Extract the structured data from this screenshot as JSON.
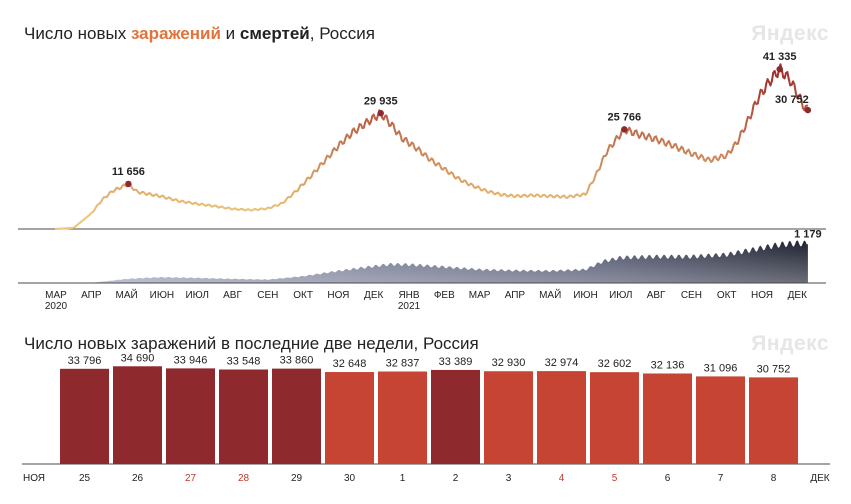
{
  "chart1": {
    "title_prefix": "Число новых ",
    "title_infections": "заражений",
    "title_mid": " и ",
    "title_deaths": "смертей",
    "title_suffix": ", Россия",
    "watermark": "Яндекс"
  },
  "chart2": {
    "title": "Число новых заражений в последние две недели, Россия",
    "watermark": "Яндекс"
  },
  "chart_data": [
    {
      "type": "line",
      "title": "Число новых заражений и смертей, Россия",
      "x_axis_labels": [
        "МАР",
        "АПР",
        "МАЙ",
        "ИЮН",
        "ИЮЛ",
        "АВГ",
        "СЕН",
        "ОКТ",
        "НОЯ",
        "ДЕК",
        "ЯНВ",
        "ФЕВ",
        "МАР",
        "АПР",
        "МАЙ",
        "ИЮН",
        "ИЮЛ",
        "АВГ",
        "СЕН",
        "ОКТ",
        "НОЯ",
        "ДЕК"
      ],
      "year_labels": [
        {
          "label": "2020",
          "month_index": 0
        },
        {
          "label": "2021",
          "month_index": 10
        }
      ],
      "series": [
        {
          "name": "заражений",
          "color_low": "#ecc67a",
          "color_high": "#a2302c",
          "points": [
            [
              0,
              0
            ],
            [
              0.5,
              300
            ],
            [
              1,
              4000
            ],
            [
              1.3,
              7500
            ],
            [
              1.6,
              9800
            ],
            [
              2.05,
              11656
            ],
            [
              2.3,
              9600
            ],
            [
              2.7,
              8900
            ],
            [
              3.0,
              8400
            ],
            [
              3.5,
              7200
            ],
            [
              4.0,
              6500
            ],
            [
              4.5,
              5900
            ],
            [
              5.0,
              5200
            ],
            [
              5.5,
              4900
            ],
            [
              6.0,
              5300
            ],
            [
              6.4,
              6600
            ],
            [
              6.8,
              9800
            ],
            [
              7.2,
              13500
            ],
            [
              7.6,
              17500
            ],
            [
              8.0,
              21500
            ],
            [
              8.4,
              25000
            ],
            [
              8.8,
              27500
            ],
            [
              9.2,
              29935
            ],
            [
              9.5,
              27000
            ],
            [
              9.8,
              23500
            ],
            [
              10.2,
              21000
            ],
            [
              10.6,
              18000
            ],
            [
              11.0,
              15500
            ],
            [
              11.4,
              13000
            ],
            [
              11.8,
              11200
            ],
            [
              12.2,
              9800
            ],
            [
              12.6,
              8900
            ],
            [
              13.0,
              8500
            ],
            [
              13.5,
              8700
            ],
            [
              14.0,
              8500
            ],
            [
              14.5,
              8300
            ],
            [
              15.0,
              9000
            ],
            [
              15.3,
              14000
            ],
            [
              15.6,
              20000
            ],
            [
              15.9,
              23500
            ],
            [
              16.1,
              25766
            ],
            [
              16.5,
              24500
            ],
            [
              17.0,
              23200
            ],
            [
              17.5,
              21500
            ],
            [
              18.0,
              19500
            ],
            [
              18.5,
              17800
            ],
            [
              19.0,
              19000
            ],
            [
              19.3,
              22500
            ],
            [
              19.6,
              28000
            ],
            [
              19.9,
              34000
            ],
            [
              20.2,
              38000
            ],
            [
              20.5,
              41335
            ],
            [
              20.8,
              38500
            ],
            [
              21.0,
              35000
            ],
            [
              21.2,
              31500
            ],
            [
              21.3,
              30752
            ]
          ],
          "labels": [
            {
              "value": "11 656",
              "at": 2.05,
              "y": 11656
            },
            {
              "value": "29 935",
              "at": 9.2,
              "y": 29935
            },
            {
              "value": "25 766",
              "at": 16.1,
              "y": 25766
            },
            {
              "value": "41 335",
              "at": 20.5,
              "y": 41335
            },
            {
              "value": "30 752",
              "at": 21.3,
              "y": 30752
            }
          ],
          "ylim": [
            0,
            45000
          ]
        },
        {
          "name": "смертей",
          "color_low": "#9fa5c0",
          "color_high": "#1d2130",
          "points": [
            [
              0,
              0
            ],
            [
              1,
              5
            ],
            [
              1.5,
              60
            ],
            [
              2,
              120
            ],
            [
              2.5,
              150
            ],
            [
              3,
              170
            ],
            [
              4,
              150
            ],
            [
              5,
              120
            ],
            [
              6,
              100
            ],
            [
              7,
              200
            ],
            [
              8,
              360
            ],
            [
              9,
              500
            ],
            [
              9.5,
              560
            ],
            [
              10,
              550
            ],
            [
              11,
              480
            ],
            [
              12,
              400
            ],
            [
              13,
              370
            ],
            [
              14,
              360
            ],
            [
              15,
              400
            ],
            [
              15.5,
              650
            ],
            [
              16,
              760
            ],
            [
              17,
              790
            ],
            [
              18,
              790
            ],
            [
              19,
              850
            ],
            [
              20,
              1050
            ],
            [
              20.5,
              1150
            ],
            [
              21,
              1190
            ],
            [
              21.3,
              1179
            ]
          ],
          "labels": [
            {
              "value": "1 179",
              "at": 21.3,
              "y": 1179
            }
          ],
          "ylim": [
            0,
            1350
          ]
        }
      ]
    },
    {
      "type": "bar",
      "title": "Число новых заражений в последние две недели, Россия",
      "categories": [
        "25",
        "26",
        "27",
        "28",
        "29",
        "30",
        "1",
        "2",
        "3",
        "4",
        "5",
        "6",
        "7",
        "8"
      ],
      "value_labels": [
        "33 796",
        "34 690",
        "33 946",
        "33 548",
        "33 860",
        "32 648",
        "32 837",
        "33 389",
        "32 930",
        "32 974",
        "32 602",
        "32 136",
        "31 096",
        "30 752"
      ],
      "values": [
        33796,
        34690,
        33946,
        33548,
        33860,
        32648,
        32837,
        33389,
        32930,
        32974,
        32602,
        32136,
        31096,
        30752
      ],
      "highlight": [
        true,
        true,
        true,
        true,
        true,
        false,
        false,
        true,
        false,
        false,
        false,
        false,
        false,
        false
      ],
      "holiday": [
        false,
        false,
        true,
        true,
        false,
        false,
        false,
        false,
        false,
        true,
        true,
        false,
        false,
        false
      ],
      "month_start": "НОЯ",
      "month_end": "ДЕК",
      "colors": {
        "highlight": "#8e2a2e",
        "normal": "#c64434",
        "holiday_text": "#c0392b",
        "text": "#222222"
      },
      "ylim": [
        0,
        35500
      ]
    }
  ]
}
